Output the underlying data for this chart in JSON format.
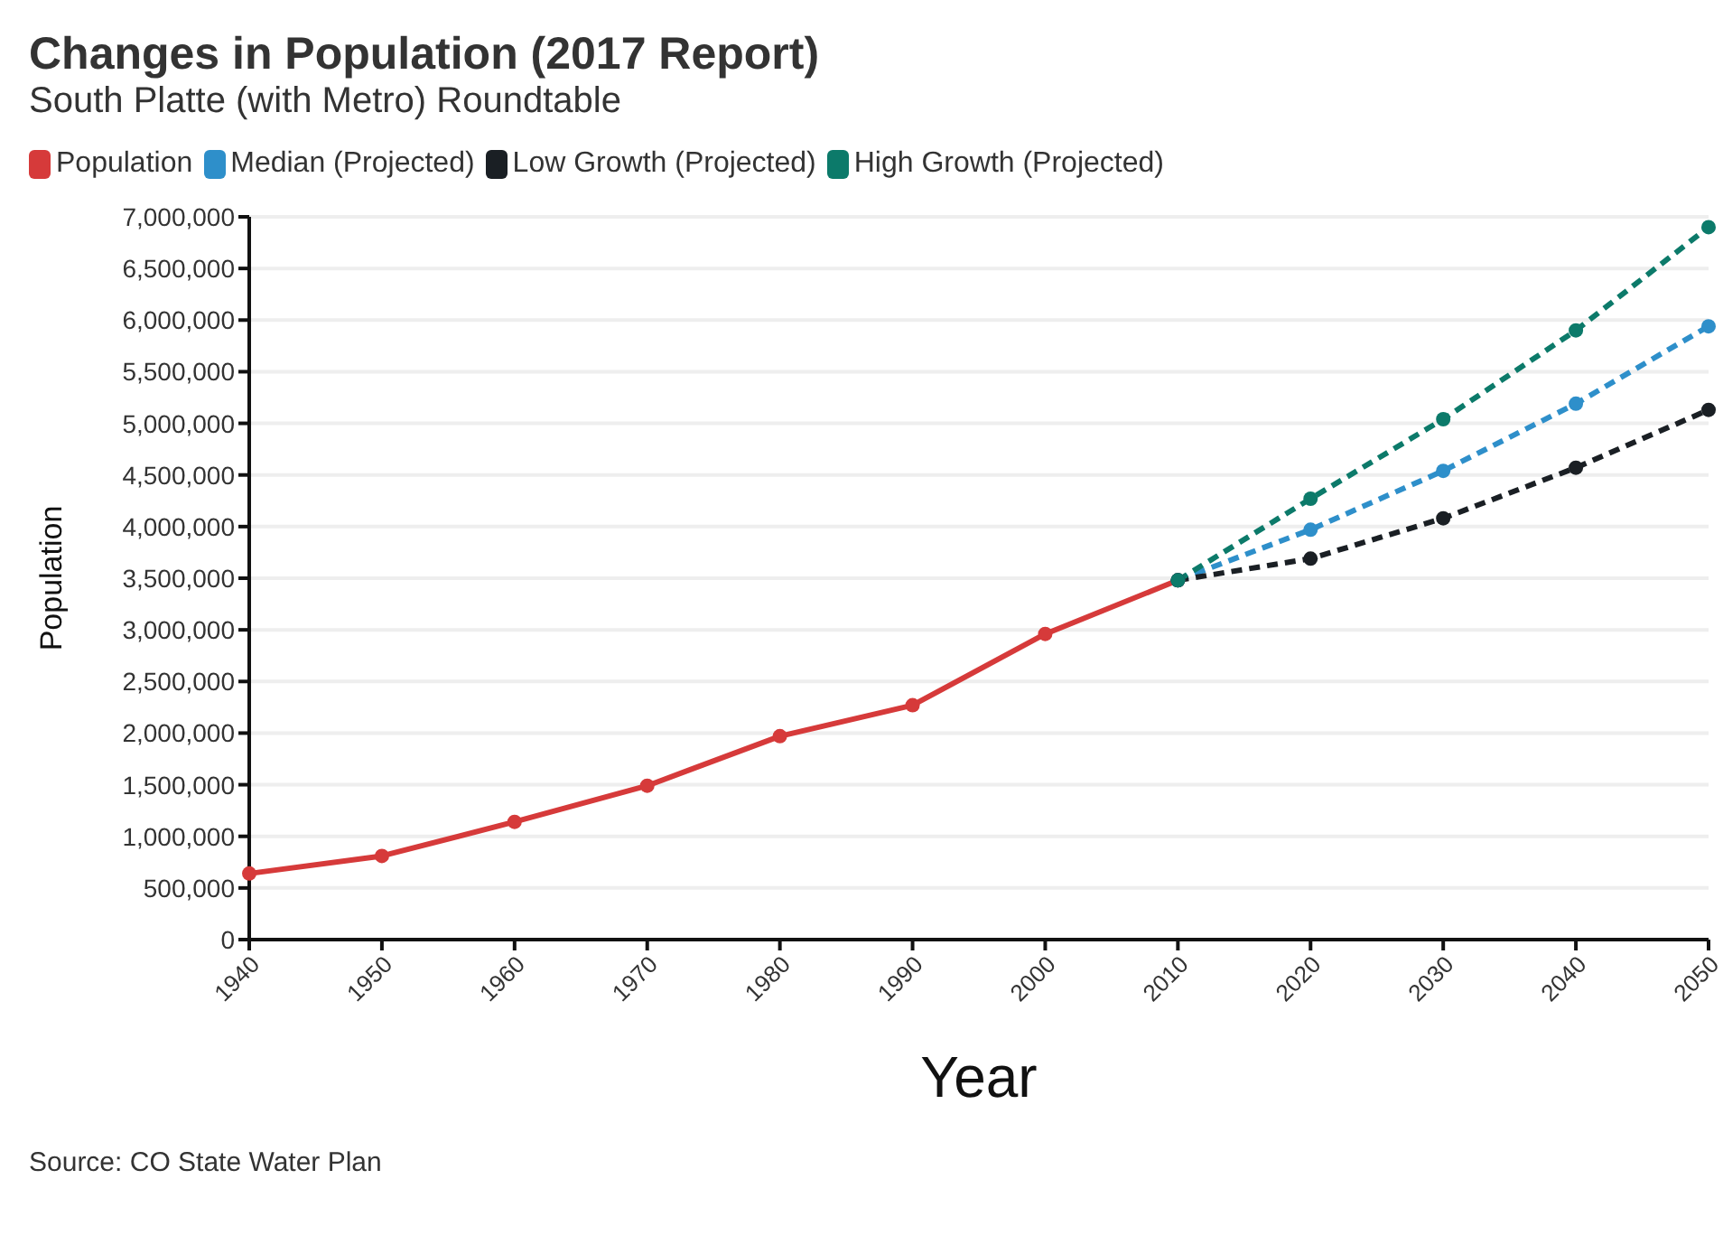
{
  "chart_data": {
    "type": "line",
    "title": "Changes in Population (2017 Report)",
    "subtitle": "South Platte (with Metro) Roundtable",
    "xlabel": "Year",
    "ylabel": "Population",
    "categories": [
      "1940",
      "1950",
      "1960",
      "1970",
      "1980",
      "1990",
      "2000",
      "2010",
      "2020",
      "2030",
      "2040",
      "2050"
    ],
    "series": [
      {
        "name": "Population",
        "color": "#d63a3a",
        "line_style": "solid",
        "values": [
          640000,
          810000,
          1140000,
          1490000,
          1970000,
          2270000,
          2960000,
          3480000,
          null,
          null,
          null,
          null
        ]
      },
      {
        "name": "Median (Projected)",
        "color": "#2e8fca",
        "line_style": "dashed",
        "values": [
          null,
          null,
          null,
          null,
          null,
          null,
          null,
          3480000,
          3970000,
          4540000,
          5190000,
          5940000
        ]
      },
      {
        "name": "Low Growth (Projected)",
        "color": "#1a1f24",
        "line_style": "dashed",
        "values": [
          null,
          null,
          null,
          null,
          null,
          null,
          null,
          3480000,
          3690000,
          4080000,
          4570000,
          5130000
        ]
      },
      {
        "name": "High Growth (Projected)",
        "color": "#0c7a6a",
        "line_style": "dashed",
        "values": [
          null,
          null,
          null,
          null,
          null,
          null,
          null,
          3480000,
          4270000,
          5040000,
          5900000,
          6900000
        ]
      }
    ],
    "ylim": [
      0,
      7000000
    ],
    "yticks": [
      0,
      {
        "value": 500000,
        "label": "500,000"
      },
      {
        "value": 1000000,
        "label": "1,000,000"
      },
      {
        "value": 1500000,
        "label": "1,500,000"
      },
      {
        "value": 2000000,
        "label": "2,000,000"
      },
      {
        "value": 2500000,
        "label": "2,500,000"
      },
      {
        "value": 3000000,
        "label": "3,000,000"
      },
      {
        "value": 3500000,
        "label": "3,500,000"
      },
      {
        "value": 4000000,
        "label": "4,000,000"
      },
      {
        "value": 4500000,
        "label": "4,500,000"
      },
      {
        "value": 5000000,
        "label": "5,000,000"
      },
      {
        "value": 5500000,
        "label": "5,500,000"
      },
      {
        "value": 6000000,
        "label": "6,000,000"
      },
      {
        "value": 6500000,
        "label": "6,500,000"
      },
      {
        "value": 7000000,
        "label": "7,000,000"
      }
    ],
    "grid": "y",
    "legend": "top left",
    "marker": "circle",
    "annotations": [
      "Source: CO State Water Plan"
    ]
  }
}
